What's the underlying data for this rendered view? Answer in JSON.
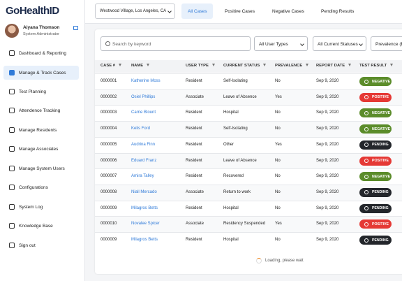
{
  "logo": "GoHealthID",
  "user": {
    "name": "Aiyana Thomson",
    "role": "System Administrator"
  },
  "nav": [
    "Dashboard & Reporting",
    "Manage & Track Cases",
    "Test Planning",
    "Attendence Tracking",
    "Manage Residents",
    "Manage Associates",
    "Manage System Users",
    "Configurations",
    "System Log",
    "Knowledge Base",
    "Sign out"
  ],
  "location": "Westwood Village, Los Angeles, CA",
  "tabs": [
    "All Cases",
    "Positive Cases",
    "Negative Cases",
    "Pending Results"
  ],
  "filters": {
    "search": "Search by keyword",
    "selects": [
      "All User Types",
      "All Current Statuses",
      "Prevalence (B"
    ]
  },
  "table": {
    "columns": [
      "CASE #",
      "NAME",
      "USER TYPE",
      "CURRENT STATUS",
      "PREVALENCE",
      "REPORT DATE",
      "TEST RESULT"
    ],
    "rows": [
      [
        "0000001",
        "Katherine Moss",
        "Resident",
        "Self-Isolating",
        "No",
        "Sep 9, 2020",
        "NEGATIVE"
      ],
      [
        "0000002",
        "Osiel Phillips",
        "Associate",
        "Leave of Absence",
        "Yes",
        "Sep 9, 2020",
        "POSITIVE"
      ],
      [
        "0000003",
        "Carrie Blount",
        "Resident",
        "Hospital",
        "No",
        "Sep 9, 2020",
        "NEGATIVE"
      ],
      [
        "0000004",
        "Kelis Ford",
        "Resident",
        "Self-Isolating",
        "No",
        "Sep 9, 2020",
        "NEGATIVE"
      ],
      [
        "0000005",
        "Audrina Finn",
        "Resident",
        "Other",
        "Yes",
        "Sep 9, 2020",
        "PENDING"
      ],
      [
        "0000006",
        "Eduard Franz",
        "Resident",
        "Leave of Absence",
        "No",
        "Sep 9, 2020",
        "POSITIVE"
      ],
      [
        "0000007",
        "Amira Talley",
        "Resident",
        "Recovered",
        "No",
        "Sep 9, 2020",
        "NEGATIVE"
      ],
      [
        "0000008",
        "Niall Mercado",
        "Associate",
        "Return to work",
        "No",
        "Sep 9, 2020",
        "PENDING"
      ],
      [
        "0000009",
        "Milagros Betts",
        "Resident",
        "Hospital",
        "No",
        "Sep 9, 2020",
        "PENDING"
      ],
      [
        "0000010",
        "Novalee Spicer",
        "Associate",
        "Residency Suspended",
        "Yes",
        "Sep 9, 2020",
        "POSITIVE"
      ],
      [
        "0000009",
        "Milagros Betts",
        "Resident",
        "Hospital",
        "No",
        "Sep 9, 2020",
        "PENDING"
      ]
    ],
    "badge_colors": {
      "NEGATIVE": "#5b8c2a",
      "POSITIVE": "#e53935",
      "PENDING": "#23262b"
    }
  },
  "loading": "Loading, please wait"
}
